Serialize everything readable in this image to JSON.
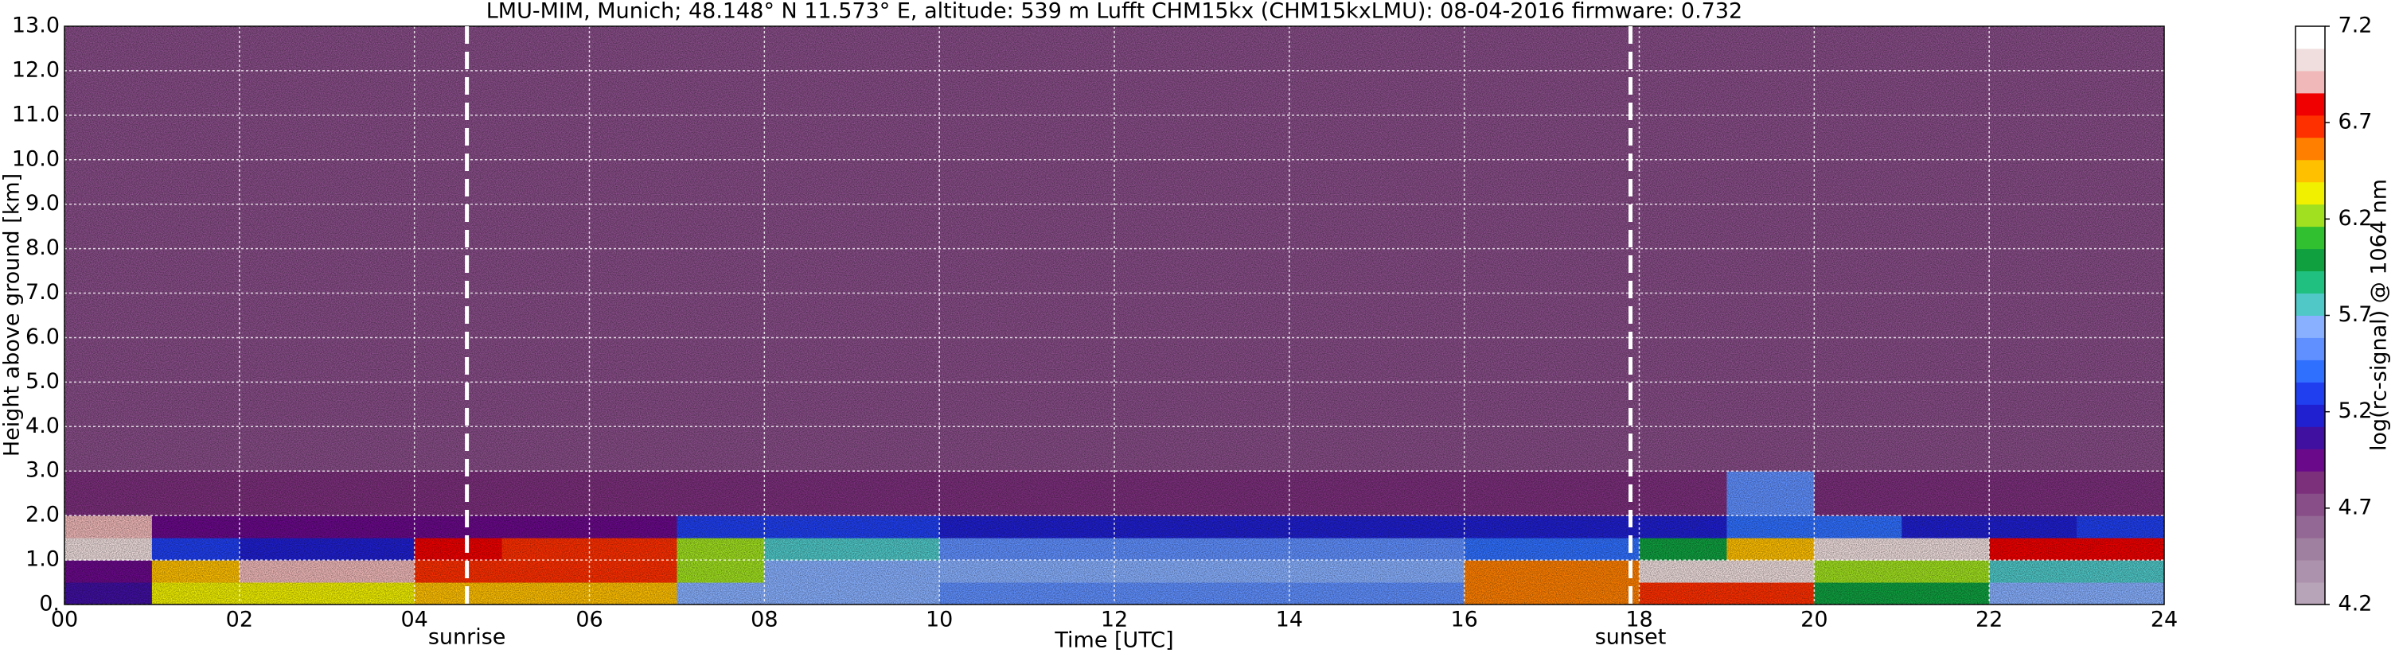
{
  "chart_data": {
    "type": "heatmap",
    "title": "LMU-MIM, Munich; 48.148° N 11.573° E, altitude: 539 m    Lufft CHM15kx (CHM15kxLMU): 08-04-2016    firmware: 0.732",
    "x_label": "Time [UTC]",
    "y_label": "Height above ground [km]",
    "colorbar_label": "log(rc-signal) @ 1064 nm",
    "xlim": [
      0,
      24
    ],
    "ylim": [
      0,
      13
    ],
    "xticks": [
      {
        "value": 0,
        "label": "00"
      },
      {
        "value": 2,
        "label": "02"
      },
      {
        "value": 4,
        "label": "04"
      },
      {
        "value": 6,
        "label": "06"
      },
      {
        "value": 8,
        "label": "08"
      },
      {
        "value": 10,
        "label": "10"
      },
      {
        "value": 12,
        "label": "12"
      },
      {
        "value": 14,
        "label": "14"
      },
      {
        "value": 16,
        "label": "16"
      },
      {
        "value": 18,
        "label": "18"
      },
      {
        "value": 20,
        "label": "20"
      },
      {
        "value": 22,
        "label": "22"
      },
      {
        "value": 24,
        "label": "24"
      }
    ],
    "yticks": [
      {
        "value": 0,
        "label": "0."
      },
      {
        "value": 1,
        "label": "1.0"
      },
      {
        "value": 2,
        "label": "2.0"
      },
      {
        "value": 3,
        "label": "3.0"
      },
      {
        "value": 4,
        "label": "4.0"
      },
      {
        "value": 5,
        "label": "5.0"
      },
      {
        "value": 6,
        "label": "6.0"
      },
      {
        "value": 7,
        "label": "7.0"
      },
      {
        "value": 8,
        "label": "8.0"
      },
      {
        "value": 9,
        "label": "9.0"
      },
      {
        "value": 10,
        "label": "10.0"
      },
      {
        "value": 11,
        "label": "11.0"
      },
      {
        "value": 12,
        "label": "12.0"
      },
      {
        "value": 13,
        "label": "13.0"
      }
    ],
    "clim": [
      4.2,
      7.2
    ],
    "cticks": [
      4.2,
      4.7,
      5.2,
      5.7,
      6.2,
      6.7,
      7.2
    ],
    "colormap": [
      "#b8a4b8",
      "#ac92ac",
      "#a080a0",
      "#946894",
      "#884e88",
      "#7c307c",
      "#6a0a8a",
      "#4010a0",
      "#2020d0",
      "#2040f0",
      "#3070ff",
      "#6090ff",
      "#88b0ff",
      "#50c8c8",
      "#20c080",
      "#10a040",
      "#30c030",
      "#a0e020",
      "#f0f000",
      "#ffc000",
      "#ff8000",
      "#ff3000",
      "#f00000",
      "#f0b8b8",
      "#f0dede",
      "#ffffff"
    ],
    "grid": true,
    "x_edges": [
      0,
      1,
      2,
      3,
      4,
      5,
      6,
      7,
      8,
      9,
      10,
      11,
      12,
      13,
      14,
      15,
      16,
      17,
      18,
      19,
      20,
      21,
      22,
      23,
      24
    ],
    "y_edges": [
      0,
      0.5,
      1,
      1.5,
      2,
      3,
      13
    ],
    "values": [
      [
        5.1,
        6.3,
        6.3,
        6.3,
        6.4,
        6.4,
        6.4,
        5.6,
        5.6,
        5.6,
        5.5,
        5.5,
        5.5,
        5.5,
        5.5,
        5.5,
        6.6,
        6.6,
        6.7,
        6.7,
        6.0,
        6.0,
        5.6,
        5.6
      ],
      [
        5.0,
        6.5,
        6.9,
        6.9,
        6.7,
        6.7,
        6.7,
        6.2,
        5.6,
        5.6,
        5.6,
        5.6,
        5.6,
        5.6,
        5.6,
        5.6,
        6.6,
        6.6,
        7.0,
        7.0,
        6.2,
        6.2,
        5.7,
        5.7
      ],
      [
        7.0,
        5.3,
        5.2,
        5.2,
        6.8,
        6.7,
        6.7,
        6.2,
        5.8,
        5.8,
        5.5,
        5.5,
        5.5,
        5.5,
        5.5,
        5.5,
        5.4,
        5.4,
        6.0,
        6.5,
        7.0,
        7.0,
        6.8,
        6.8
      ],
      [
        6.9,
        5.0,
        5.0,
        5.0,
        5.0,
        5.0,
        5.0,
        5.3,
        5.3,
        5.3,
        5.2,
        5.2,
        5.2,
        5.2,
        5.2,
        5.2,
        5.2,
        5.2,
        5.2,
        5.4,
        5.4,
        5.2,
        5.2,
        5.3
      ],
      [
        4.8,
        4.8,
        4.8,
        4.8,
        4.8,
        4.8,
        4.8,
        4.8,
        4.8,
        4.8,
        4.8,
        4.8,
        4.8,
        4.8,
        4.8,
        4.8,
        4.8,
        4.8,
        4.8,
        5.5,
        4.8,
        4.8,
        4.8,
        4.8
      ],
      [
        4.7,
        4.7,
        4.7,
        4.7,
        4.7,
        4.7,
        4.7,
        4.7,
        4.7,
        4.7,
        4.7,
        4.7,
        4.7,
        4.7,
        4.7,
        4.7,
        4.7,
        4.7,
        4.7,
        4.7,
        4.7,
        4.7,
        4.7,
        4.7
      ]
    ],
    "annotations": [
      {
        "text": "sunrise",
        "x": 4.6
      },
      {
        "text": "sunset",
        "x": 17.9
      }
    ]
  }
}
